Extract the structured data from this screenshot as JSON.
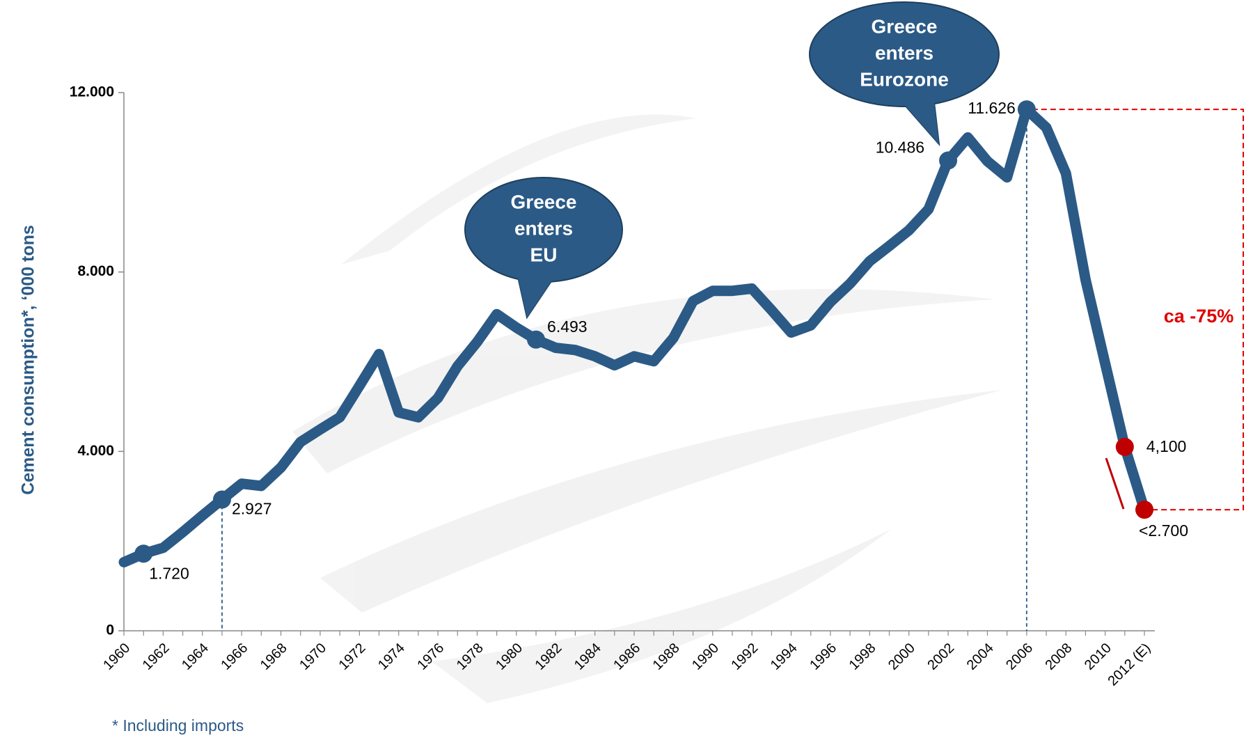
{
  "chart_data": {
    "type": "line",
    "y_label": "Cement consumption*, ‘000 tons",
    "footnote": "* Including imports",
    "categories": [
      "1960",
      null,
      "1962",
      null,
      "1964",
      null,
      "1966",
      null,
      "1968",
      null,
      "1970",
      null,
      "1972",
      null,
      "1974",
      null,
      "1976",
      null,
      "1978",
      null,
      "1980",
      null,
      "1982",
      null,
      "1984",
      null,
      "1986",
      null,
      "1988",
      null,
      "1990",
      null,
      "1992",
      null,
      "1994",
      null,
      "1996",
      null,
      "1998",
      null,
      "2000",
      null,
      "2002",
      null,
      "2004",
      null,
      "2006",
      null,
      "2008",
      null,
      "2010",
      null,
      "2012 (E)"
    ],
    "values": [
      1530,
      1720,
      1850,
      2200,
      2570,
      2927,
      3280,
      3230,
      3640,
      4210,
      4490,
      4760,
      5460,
      6170,
      4870,
      4760,
      5190,
      5900,
      6440,
      7060,
      6760,
      6493,
      6310,
      6260,
      6120,
      5920,
      6120,
      6010,
      6530,
      7350,
      7580,
      7580,
      7630,
      7150,
      6650,
      6810,
      7330,
      7740,
      8240,
      8580,
      8930,
      9400,
      10486,
      11000,
      10470,
      10110,
      11626,
      11220,
      10200,
      7830,
      5960,
      4100,
      2700
    ],
    "value_labels": [
      null,
      "1.720",
      null,
      null,
      null,
      "2.927",
      null,
      null,
      null,
      null,
      null,
      null,
      null,
      null,
      null,
      null,
      null,
      null,
      null,
      null,
      null,
      "6.493",
      null,
      null,
      null,
      null,
      null,
      null,
      null,
      null,
      null,
      null,
      null,
      null,
      null,
      null,
      null,
      null,
      null,
      null,
      null,
      null,
      "10.486",
      null,
      null,
      null,
      "11.626",
      null,
      null,
      null,
      null,
      "4,100",
      "<2.700"
    ],
    "color": "#2b5a86",
    "marker_colors": [
      null,
      "#2b5a86",
      null,
      null,
      null,
      "#2b5a86",
      null,
      null,
      null,
      null,
      null,
      null,
      null,
      null,
      null,
      null,
      null,
      null,
      null,
      null,
      null,
      "#2b5a86",
      null,
      null,
      null,
      null,
      null,
      null,
      null,
      null,
      null,
      null,
      null,
      null,
      null,
      null,
      null,
      null,
      null,
      null,
      null,
      null,
      "#2b5a86",
      null,
      null,
      null,
      "#2b5a86",
      null,
      null,
      null,
      null,
      "#c00000",
      "#c00000"
    ],
    "ylim": [
      0,
      12000
    ],
    "yticks": [
      0,
      {
        "value": 4000,
        "label": "4.000"
      },
      {
        "value": 8000,
        "label": "8.000"
      },
      {
        "value": 12000,
        "label": "12.000"
      }
    ],
    "grid": false,
    "annotations": [
      {
        "lines": [
          "Greece",
          "enters",
          "EU"
        ]
      },
      {
        "lines": [
          "Greece",
          "enters",
          "Eurozone"
        ]
      }
    ],
    "change_label": "ca -75%"
  }
}
